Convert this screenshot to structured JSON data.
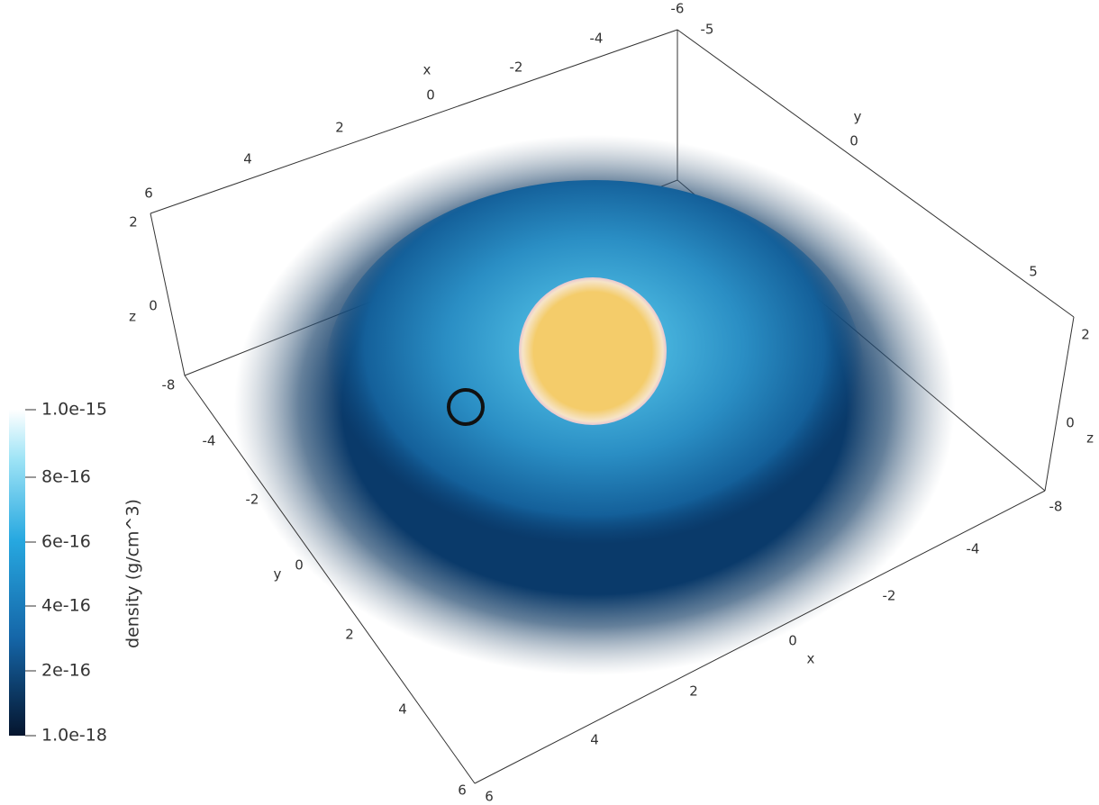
{
  "colorbar": {
    "title": "density (g/cm^3)",
    "ticks": [
      "1.0e-15",
      "8e-16",
      "6e-16",
      "4e-16",
      "2e-16",
      "1.0e-18"
    ]
  },
  "axes": {
    "back_x": {
      "title": "x",
      "ticks": [
        "6",
        "4",
        "2",
        "0",
        "-2",
        "-4",
        "-6"
      ]
    },
    "back_y": {
      "title": "y",
      "ticks": [
        "-5",
        "0",
        "5"
      ]
    },
    "left_z": {
      "title": "z",
      "ticks": [
        "2",
        "0",
        "-8"
      ]
    },
    "right_z": {
      "title": "z",
      "ticks": [
        "2",
        "0",
        "-8"
      ]
    },
    "front_y": {
      "title": "y",
      "ticks": [
        "-4",
        "-2",
        "0",
        "2",
        "4",
        "6"
      ]
    },
    "front_x": {
      "title": "x",
      "ticks": [
        "-4",
        "-2",
        "0",
        "2",
        "4",
        "6"
      ]
    }
  }
}
